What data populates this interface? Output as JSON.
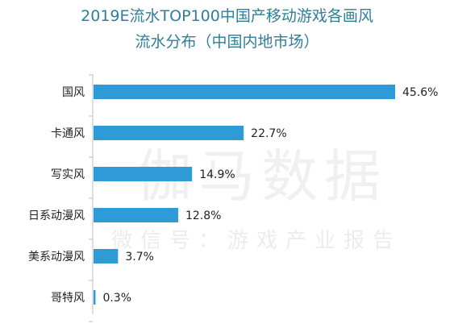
{
  "title_line1": "2019E流水TOP100中国产移动游戏各画风",
  "title_line2": "流水分布（中国内地市场）",
  "watermark_main": "伽马数据",
  "watermark_sub": "微信号：游戏产业报告",
  "colors": {
    "bar": "#2e9bd6",
    "axis": "#bfbfbf",
    "title": "#2f7e9a",
    "text": "#222222"
  },
  "chart_data": {
    "type": "bar",
    "orientation": "horizontal",
    "categories": [
      "国风",
      "卡通风",
      "写实风",
      "日系动漫风",
      "美系动漫风",
      "哥特风"
    ],
    "values": [
      45.6,
      22.7,
      14.9,
      12.8,
      3.7,
      0.3
    ],
    "value_labels": [
      "45.6%",
      "22.7%",
      "14.9%",
      "12.8%",
      "3.7%",
      "0.3%"
    ],
    "xlim": [
      0,
      45.6
    ],
    "grid": false,
    "legend": "none"
  }
}
